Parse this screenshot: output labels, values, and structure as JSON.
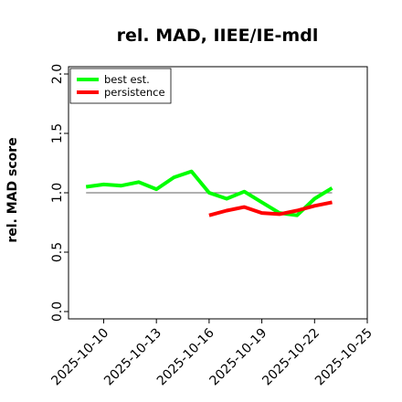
{
  "chart_data": {
    "type": "line",
    "title": "rel. MAD, IIEE/IE-mdl",
    "xlabel": "",
    "ylabel": "rel. MAD score",
    "xlim": [
      "2025-10-08",
      "2025-10-25"
    ],
    "ylim": [
      0.0,
      2.0
    ],
    "x_tick_labels": [
      "2025-10-10",
      "2025-10-13",
      "2025-10-16",
      "2025-10-19",
      "2025-10-22",
      "2025-10-25"
    ],
    "y_tick_labels": [
      "0.0",
      "0.5",
      "1.0",
      "1.5",
      "2.0"
    ],
    "reference_line": {
      "y": 1.0,
      "x": [
        "2025-10-09",
        "2025-10-23"
      ],
      "color": "#808080"
    },
    "legend_position": "top-left",
    "grid": false,
    "series": [
      {
        "name": "best est.",
        "color": "#00ff00",
        "x": [
          "2025-10-09",
          "2025-10-10",
          "2025-10-11",
          "2025-10-12",
          "2025-10-13",
          "2025-10-14",
          "2025-10-15",
          "2025-10-16",
          "2025-10-17",
          "2025-10-18",
          "2025-10-19",
          "2025-10-20",
          "2025-10-21",
          "2025-10-22",
          "2025-10-23"
        ],
        "y": [
          1.05,
          1.07,
          1.06,
          1.09,
          1.03,
          1.13,
          1.18,
          1.0,
          0.95,
          1.01,
          0.92,
          0.83,
          0.81,
          0.95,
          1.04
        ]
      },
      {
        "name": "persistence",
        "color": "#ff0000",
        "x": [
          "2025-10-16",
          "2025-10-17",
          "2025-10-18",
          "2025-10-19",
          "2025-10-20",
          "2025-10-21",
          "2025-10-22",
          "2025-10-23"
        ],
        "y": [
          0.81,
          0.85,
          0.88,
          0.83,
          0.82,
          0.85,
          0.89,
          0.92
        ]
      }
    ]
  }
}
